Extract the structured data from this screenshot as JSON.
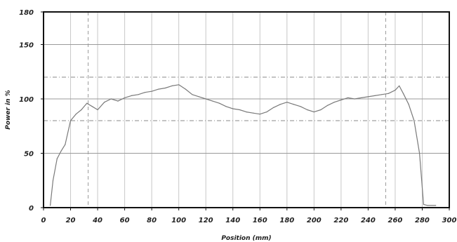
{
  "chart_data": {
    "type": "line",
    "title": "",
    "xlabel": "Position (mm)",
    "ylabel": "Power in %",
    "xlim": [
      0,
      300
    ],
    "ylim": [
      0,
      180
    ],
    "x_ticks": [
      0,
      20,
      40,
      60,
      80,
      100,
      120,
      140,
      160,
      180,
      200,
      220,
      240,
      260,
      280,
      300
    ],
    "y_ticks": [
      0,
      50,
      100,
      150,
      180
    ],
    "x_tick_labels": [
      "0",
      "20",
      "40",
      "60",
      "80",
      "100",
      "120",
      "140",
      "160",
      "180",
      "200",
      "220",
      "240",
      "260",
      "280",
      "300"
    ],
    "y_tick_labels": [
      "0",
      "50",
      "100",
      "150",
      "180"
    ],
    "grid": true,
    "reference_lines": {
      "horizontal": [
        120,
        80
      ],
      "vertical": [
        33,
        253
      ]
    },
    "series": [
      {
        "x": [
          5,
          7,
          10,
          13,
          16,
          20,
          24,
          28,
          32,
          36,
          40,
          45,
          50,
          55,
          60,
          65,
          70,
          75,
          80,
          85,
          90,
          95,
          100,
          105,
          110,
          115,
          120,
          125,
          130,
          135,
          140,
          145,
          150,
          155,
          160,
          165,
          170,
          175,
          180,
          185,
          190,
          195,
          200,
          205,
          210,
          215,
          220,
          225,
          230,
          235,
          240,
          245,
          250,
          255,
          260,
          263,
          266,
          270,
          274,
          278,
          281,
          284,
          290
        ],
        "values": [
          2,
          25,
          45,
          52,
          58,
          80,
          86,
          90,
          96,
          93,
          90,
          97,
          100,
          98,
          101,
          103,
          104,
          106,
          107,
          109,
          110,
          112,
          113,
          109,
          104,
          102,
          100,
          98,
          96,
          93,
          91,
          90,
          88,
          87,
          86,
          88,
          92,
          95,
          97,
          95,
          93,
          90,
          88,
          90,
          94,
          97,
          99,
          101,
          100,
          101,
          102,
          103,
          104,
          105,
          108,
          112,
          105,
          95,
          80,
          50,
          3,
          2,
          2
        ],
        "color": "#7a7a7a"
      }
    ]
  }
}
